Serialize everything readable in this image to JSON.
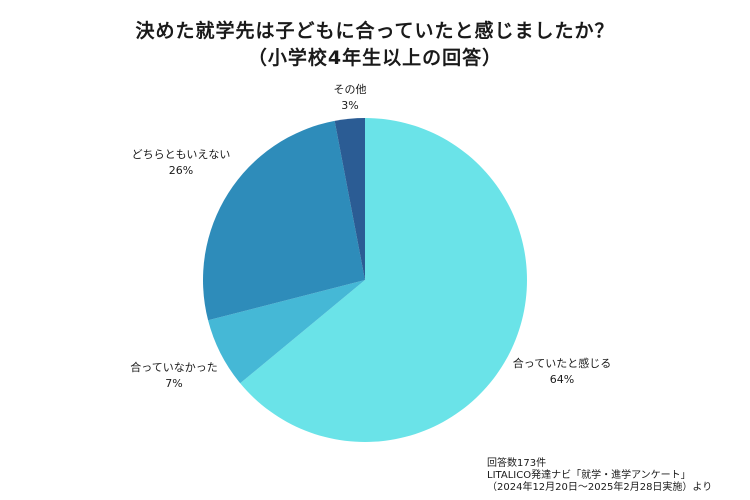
{
  "chart_data": {
    "type": "pie",
    "title": "決めた就学先は子どもに合っていたと感じましたか？",
    "subtitle": "（小学校4年生以上の回答）",
    "slices": [
      {
        "label": "合っていたと感じる",
        "value": 64,
        "value_label": "64%",
        "color": "#6ae3e8"
      },
      {
        "label": "合っていなかった",
        "value": 7,
        "value_label": "7%",
        "color": "#45b8d6"
      },
      {
        "label": "どちらともいえない",
        "value": 26,
        "value_label": "26%",
        "color": "#2e8cba"
      },
      {
        "label": "その他",
        "value": 3,
        "value_label": "3%",
        "color": "#2b5c94"
      }
    ],
    "start": "12 o'clock",
    "direction": "clockwise"
  },
  "footnote": {
    "respondents": "回答数173件",
    "source": "LITALICO発達ナビ「就学・進学アンケート」",
    "period": "（2024年12月20日～2025年2月28日実施）より"
  }
}
